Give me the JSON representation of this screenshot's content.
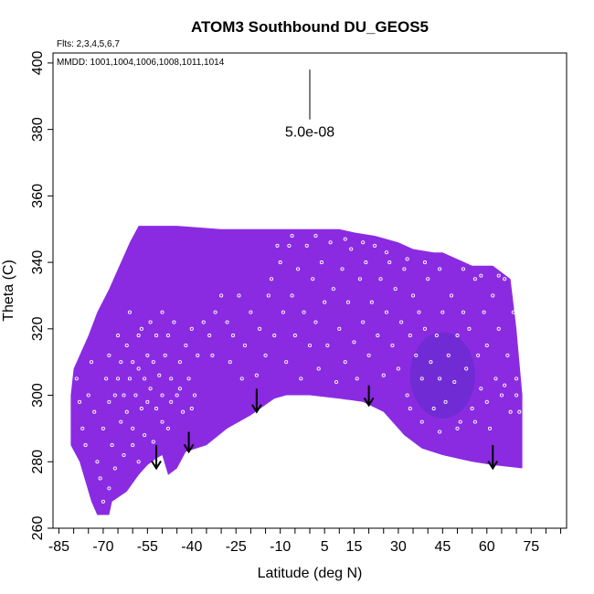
{
  "chart_data": {
    "type": "heatmap",
    "title": "ATOM3 Southbound DU_GEOS5",
    "flights_note": "Flts: 2,3,4,5,6,7",
    "dates_note": "MMDD: 1001,1004,1006,1008,1011,1014",
    "xlabel": "Latitude (deg N)",
    "ylabel": "Theta (C)",
    "xlim": [
      -87,
      87
    ],
    "ylim": [
      260,
      403
    ],
    "x_ticks": [
      -85,
      -70,
      -55,
      -40,
      -25,
      -10,
      5,
      15,
      30,
      45,
      60,
      75
    ],
    "x_tick_labels": [
      "-85",
      "-70",
      "-55",
      "-40",
      "-25",
      "-10",
      "5",
      "15",
      "30",
      "45",
      "60",
      "75"
    ],
    "y_ticks": [
      260,
      280,
      300,
      320,
      340,
      360,
      380,
      400
    ],
    "y_tick_labels": [
      "260",
      "280",
      "300",
      "320",
      "340",
      "360",
      "380",
      "400"
    ],
    "scale_bar": {
      "label": "5.0e-08",
      "x": 0,
      "y_top": 398,
      "y_bottom": 383
    },
    "field_color": "#8a2be2",
    "field_color_dark": "#5d2cc8",
    "point_color": "#ffffff",
    "field_bottom": [
      [
        -78,
        280
      ],
      [
        -74,
        268
      ],
      [
        -72,
        264
      ],
      [
        -68,
        264
      ],
      [
        -67,
        268
      ],
      [
        -62,
        271
      ],
      [
        -58,
        276
      ],
      [
        -55,
        279
      ],
      [
        -52,
        281
      ],
      [
        -50,
        282
      ],
      [
        -48,
        276
      ],
      [
        -45,
        278
      ],
      [
        -42,
        283
      ],
      [
        -35,
        285
      ],
      [
        -28,
        290
      ],
      [
        -20,
        294
      ],
      [
        -12,
        299
      ],
      [
        -8,
        300
      ],
      [
        0,
        300
      ],
      [
        10,
        299
      ],
      [
        18,
        298
      ],
      [
        25,
        295
      ],
      [
        32,
        288
      ],
      [
        38,
        284
      ],
      [
        45,
        282
      ],
      [
        55,
        280
      ],
      [
        62,
        279
      ],
      [
        72,
        278
      ]
    ],
    "field_top": [
      [
        72,
        280
      ],
      [
        72,
        300
      ],
      [
        70,
        320
      ],
      [
        68,
        335
      ],
      [
        62,
        339
      ],
      [
        55,
        339
      ],
      [
        50,
        341
      ],
      [
        45,
        343
      ],
      [
        42,
        343
      ],
      [
        35,
        344
      ],
      [
        30,
        346
      ],
      [
        22,
        348
      ],
      [
        15,
        349
      ],
      [
        10,
        350
      ],
      [
        5,
        350
      ],
      [
        -10,
        350
      ],
      [
        -20,
        350
      ],
      [
        -30,
        350
      ],
      [
        -45,
        351
      ],
      [
        -52,
        351
      ],
      [
        -58,
        351
      ],
      [
        -61,
        346
      ],
      [
        -64,
        340
      ],
      [
        -68,
        332
      ],
      [
        -72,
        325
      ],
      [
        -75,
        318
      ],
      [
        -78,
        312
      ],
      [
        -80,
        308
      ],
      [
        -81,
        300
      ],
      [
        -81,
        285
      ]
    ],
    "dark_region": {
      "x": 45,
      "y": 306,
      "rx": 11,
      "ry": 13
    },
    "arrows": [
      {
        "x": -52,
        "y_top": 285,
        "y_bottom": 278
      },
      {
        "x": -41,
        "y_top": 289,
        "y_bottom": 283
      },
      {
        "x": -18,
        "y_top": 302,
        "y_bottom": 295
      },
      {
        "x": 20,
        "y_top": 303,
        "y_bottom": 297
      },
      {
        "x": 62,
        "y_top": 285,
        "y_bottom": 278
      }
    ],
    "points": [
      [
        -79,
        305
      ],
      [
        -78,
        298
      ],
      [
        -77,
        290
      ],
      [
        -76,
        285
      ],
      [
        -75,
        300
      ],
      [
        -74,
        310
      ],
      [
        -73,
        295
      ],
      [
        -72,
        280
      ],
      [
        -71,
        275
      ],
      [
        -70,
        290
      ],
      [
        -69,
        305
      ],
      [
        -68,
        312
      ],
      [
        -68,
        298
      ],
      [
        -67,
        285
      ],
      [
        -66,
        300
      ],
      [
        -65,
        318
      ],
      [
        -65,
        305
      ],
      [
        -64,
        292
      ],
      [
        -64,
        310
      ],
      [
        -63,
        300
      ],
      [
        -62,
        315
      ],
      [
        -62,
        295
      ],
      [
        -61,
        325
      ],
      [
        -61,
        305
      ],
      [
        -60,
        310
      ],
      [
        -60,
        290
      ],
      [
        -59,
        300
      ],
      [
        -58,
        318
      ],
      [
        -58,
        308
      ],
      [
        -57,
        296
      ],
      [
        -57,
        320
      ],
      [
        -56,
        305
      ],
      [
        -55,
        312
      ],
      [
        -55,
        298
      ],
      [
        -54,
        322
      ],
      [
        -54,
        302
      ],
      [
        -53,
        310
      ],
      [
        -52,
        296
      ],
      [
        -52,
        318
      ],
      [
        -51,
        306
      ],
      [
        -50,
        325
      ],
      [
        -50,
        300
      ],
      [
        -49,
        312
      ],
      [
        -48,
        290
      ],
      [
        -48,
        318
      ],
      [
        -47,
        305
      ],
      [
        -46,
        322
      ],
      [
        -45,
        300
      ],
      [
        -44,
        310
      ],
      [
        -43,
        295
      ],
      [
        -42,
        315
      ],
      [
        -41,
        305
      ],
      [
        -40,
        320
      ],
      [
        -39,
        300
      ],
      [
        -38,
        312
      ],
      [
        -36,
        322
      ],
      [
        -34,
        318
      ],
      [
        -32,
        325
      ],
      [
        -30,
        330
      ],
      [
        -28,
        322
      ],
      [
        -26,
        318
      ],
      [
        -24,
        330
      ],
      [
        -22,
        315
      ],
      [
        -20,
        325
      ],
      [
        -18,
        306
      ],
      [
        -17,
        320
      ],
      [
        -15,
        312
      ],
      [
        -13,
        335
      ],
      [
        -12,
        318
      ],
      [
        -10,
        340
      ],
      [
        -9,
        325
      ],
      [
        -8,
        310
      ],
      [
        -7,
        345
      ],
      [
        -6,
        330
      ],
      [
        -5,
        318
      ],
      [
        -4,
        338
      ],
      [
        -3,
        305
      ],
      [
        -2,
        325
      ],
      [
        -1,
        345
      ],
      [
        0,
        315
      ],
      [
        1,
        335
      ],
      [
        2,
        322
      ],
      [
        3,
        308
      ],
      [
        4,
        340
      ],
      [
        5,
        328
      ],
      [
        6,
        315
      ],
      [
        7,
        346
      ],
      [
        8,
        332
      ],
      [
        9,
        304
      ],
      [
        10,
        320
      ],
      [
        11,
        338
      ],
      [
        12,
        310
      ],
      [
        13,
        328
      ],
      [
        14,
        344
      ],
      [
        15,
        316
      ],
      [
        16,
        305
      ],
      [
        17,
        335
      ],
      [
        18,
        322
      ],
      [
        19,
        340
      ],
      [
        20,
        312
      ],
      [
        21,
        328
      ],
      [
        22,
        345
      ],
      [
        23,
        318
      ],
      [
        24,
        335
      ],
      [
        25,
        306
      ],
      [
        26,
        325
      ],
      [
        27,
        340
      ],
      [
        28,
        315
      ],
      [
        29,
        332
      ],
      [
        30,
        308
      ],
      [
        31,
        322
      ],
      [
        32,
        338
      ],
      [
        33,
        300
      ],
      [
        34,
        318
      ],
      [
        35,
        330
      ],
      [
        36,
        312
      ],
      [
        37,
        325
      ],
      [
        38,
        305
      ],
      [
        39,
        320
      ],
      [
        40,
        335
      ],
      [
        41,
        310
      ],
      [
        42,
        296
      ],
      [
        43,
        318
      ],
      [
        44,
        305
      ],
      [
        45,
        325
      ],
      [
        46,
        298
      ],
      [
        47,
        312
      ],
      [
        48,
        330
      ],
      [
        49,
        304
      ],
      [
        50,
        318
      ],
      [
        51,
        292
      ],
      [
        52,
        325
      ],
      [
        53,
        308
      ],
      [
        54,
        320
      ],
      [
        55,
        296
      ],
      [
        56,
        335
      ],
      [
        57,
        312
      ],
      [
        58,
        302
      ],
      [
        59,
        325
      ],
      [
        60,
        315
      ],
      [
        61,
        290
      ],
      [
        62,
        330
      ],
      [
        63,
        305
      ],
      [
        64,
        320
      ],
      [
        65,
        300
      ],
      [
        66,
        335
      ],
      [
        67,
        312
      ],
      [
        68,
        295
      ],
      [
        69,
        325
      ],
      [
        70,
        305
      ],
      [
        71,
        318
      ],
      [
        71,
        295
      ],
      [
        -70,
        268
      ],
      [
        -68,
        272
      ],
      [
        -66,
        278
      ],
      [
        -63,
        282
      ],
      [
        -60,
        285
      ],
      [
        -58,
        280
      ],
      [
        -56,
        288
      ],
      [
        -53,
        286
      ],
      [
        -50,
        292
      ],
      [
        -47,
        298
      ],
      [
        -44,
        302
      ],
      [
        -40,
        296
      ],
      [
        -33,
        312
      ],
      [
        -27,
        310
      ],
      [
        -23,
        305
      ],
      [
        -14,
        330
      ],
      [
        -11,
        345
      ],
      [
        -6,
        348
      ],
      [
        2,
        348
      ],
      [
        12,
        347
      ],
      [
        18,
        346
      ],
      [
        26,
        343
      ],
      [
        33,
        341
      ],
      [
        39,
        340
      ],
      [
        44,
        338
      ],
      [
        52,
        338
      ],
      [
        58,
        336
      ],
      [
        64,
        336
      ],
      [
        34,
        296
      ],
      [
        38,
        292
      ],
      [
        44,
        289
      ],
      [
        50,
        290
      ],
      [
        56,
        292
      ],
      [
        60,
        298
      ],
      [
        66,
        303
      ],
      [
        70,
        300
      ]
    ]
  }
}
